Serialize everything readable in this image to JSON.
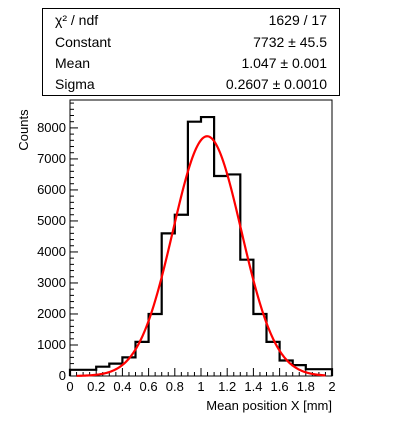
{
  "stats": [
    {
      "label": "χ² / ndf",
      "value": "1629 / 17"
    },
    {
      "label": "Constant",
      "value": "7732 ± 45.5"
    },
    {
      "label": "Mean",
      "value": "1.047 ± 0.001"
    },
    {
      "label": "Sigma",
      "value": "0.2607 ± 0.0010"
    }
  ],
  "chart_data": {
    "type": "bar",
    "style": "histogram-step",
    "title": "",
    "xlabel": "Mean position X [mm]",
    "ylabel": "Counts",
    "xlim": [
      0,
      2
    ],
    "ylim": [
      0,
      8900
    ],
    "grid": false,
    "xticks": [
      "0",
      "0.2",
      "0.4",
      "0.6",
      "0.8",
      "1",
      "1.2",
      "1.4",
      "1.6",
      "1.8",
      "2"
    ],
    "yticks": [
      "0",
      "1000",
      "2000",
      "3000",
      "4000",
      "5000",
      "6000",
      "7000",
      "8000"
    ],
    "bin_edges": [
      0,
      0.2,
      0.3,
      0.4,
      0.5,
      0.6,
      0.7,
      0.8,
      0.9,
      1.0,
      1.1,
      1.2,
      1.3,
      1.4,
      1.5,
      1.6,
      1.7,
      1.8,
      2.0
    ],
    "counts": [
      200,
      300,
      400,
      600,
      1100,
      2000,
      4600,
      5200,
      8200,
      8350,
      6450,
      6500,
      3750,
      2000,
      1100,
      500,
      350,
      220
    ],
    "series": [
      {
        "values": [
          200,
          300,
          400,
          600,
          1100,
          2000,
          4600,
          5200,
          8200,
          8350,
          6450,
          6500,
          3750,
          2000,
          1100,
          500,
          350,
          220
        ],
        "color": "#000000"
      }
    ],
    "fit": {
      "function": "gaus",
      "constant": 7732,
      "mean": 1.047,
      "sigma": 0.2607,
      "color": "#ff0000"
    }
  }
}
